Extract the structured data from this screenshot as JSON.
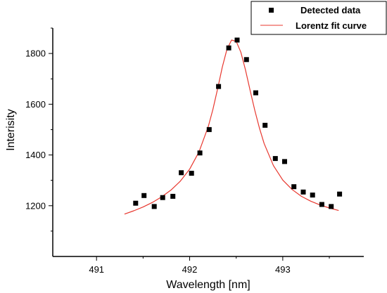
{
  "chart_data": {
    "type": "scatter",
    "title": "",
    "xlabel": "Wavelength [nm]",
    "ylabel": "Interisity",
    "xlim": [
      490.53,
      493.87
    ],
    "ylim": [
      1000,
      1900
    ],
    "x_ticks": [
      491,
      492,
      493
    ],
    "y_ticks": [
      1200,
      1400,
      1600,
      1800
    ],
    "grid": false,
    "legend_position": "top-right",
    "series": [
      {
        "name": "Detected data",
        "kind": "scatter",
        "marker": "square",
        "color": "#000000",
        "x": [
          491.42,
          491.51,
          491.62,
          491.71,
          491.82,
          491.91,
          492.02,
          492.11,
          492.21,
          492.31,
          492.42,
          492.51,
          492.61,
          492.71,
          492.81,
          492.92,
          493.02,
          493.12,
          493.22,
          493.32,
          493.42,
          493.52,
          493.61
        ],
        "y": [
          1210,
          1240,
          1197,
          1232,
          1237,
          1330,
          1328,
          1408,
          1500,
          1670,
          1822,
          1853,
          1776,
          1645,
          1517,
          1386,
          1374,
          1275,
          1254,
          1242,
          1205,
          1197,
          1246
        ]
      },
      {
        "name": "Lorentz fit curve",
        "kind": "line",
        "color": "#e8372e",
        "x": [
          491.3,
          491.4,
          491.5,
          491.6,
          491.7,
          491.8,
          491.9,
          492.0,
          492.1,
          492.2,
          492.25,
          492.3,
          492.35,
          492.4,
          492.45,
          492.5,
          492.55,
          492.6,
          492.65,
          492.7,
          492.75,
          492.8,
          492.9,
          493.0,
          493.1,
          493.2,
          493.3,
          493.4,
          493.5,
          493.6
        ],
        "y": [
          1167,
          1180,
          1195,
          1213,
          1235,
          1262,
          1297,
          1344,
          1412,
          1512,
          1580,
          1660,
          1746,
          1816,
          1853,
          1848,
          1805,
          1735,
          1653,
          1575,
          1505,
          1445,
          1358,
          1301,
          1264,
          1237,
          1218,
          1203,
          1191,
          1181
        ]
      }
    ]
  },
  "colors": {
    "background": "#ffffff",
    "axis": "#000000",
    "markers": "#000000",
    "fit_curve": "#e8372e"
  }
}
